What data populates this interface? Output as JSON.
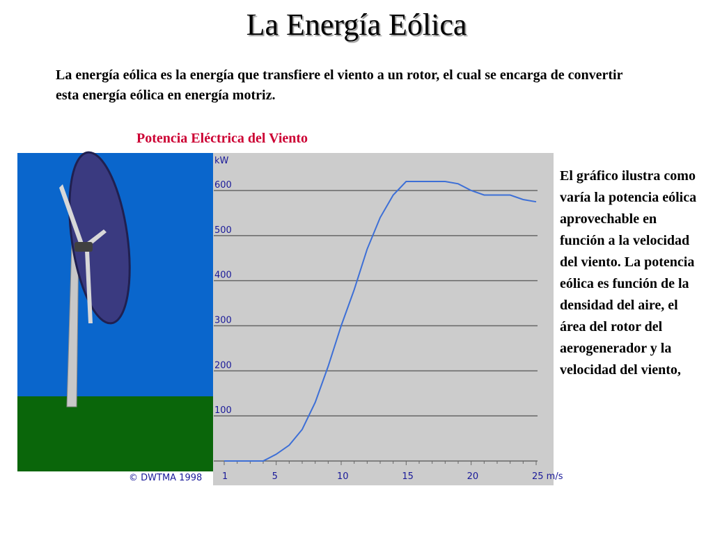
{
  "title": "La Energía Eólica",
  "intro": "La energía eólica es la energía que transfiere el viento a un rotor, el cual se encarga de convertir esta energía eólica en energía motriz.",
  "chart_caption": "Potencia Eléctrica del Viento",
  "side_text": "El gráfico ilustra como varía la potencia eólica aprovechable en función a la velocidad del viento. La potencia eólica es función de la densidad del aire, el área del rotor del aerogenerador y la velocidad del viento,",
  "credit": "© DWTMA 1998",
  "colors": {
    "sky": "#0a66cc",
    "grass": "#0a660a",
    "chart_bg": "#cccccc",
    "curve": "#3d6fd6",
    "gridline": "#666666",
    "title_red": "#cc0033"
  },
  "chart_data": {
    "type": "line",
    "title": "",
    "ylabel": "kW",
    "xunit": "m/s",
    "xlim": [
      1,
      25
    ],
    "ylim": [
      0,
      650
    ],
    "x_ticks": [
      1,
      5,
      10,
      15,
      20,
      25
    ],
    "x_tick_labels": [
      "1",
      "5",
      "10",
      "15",
      "20",
      "25 m/s"
    ],
    "y_ticks": [
      100,
      200,
      300,
      400,
      500,
      600
    ],
    "grid": true,
    "series": [
      {
        "x": [
          1,
          2,
          3,
          4,
          5,
          6,
          7,
          8,
          9,
          10,
          11,
          12,
          13,
          14,
          15,
          16,
          17,
          18,
          19,
          20,
          21,
          22,
          23,
          24,
          25
        ],
        "y": [
          0,
          0,
          0,
          0,
          15,
          35,
          70,
          130,
          210,
          300,
          380,
          470,
          540,
          590,
          620,
          620,
          620,
          620,
          615,
          600,
          590,
          590,
          590,
          580,
          575
        ]
      }
    ]
  }
}
